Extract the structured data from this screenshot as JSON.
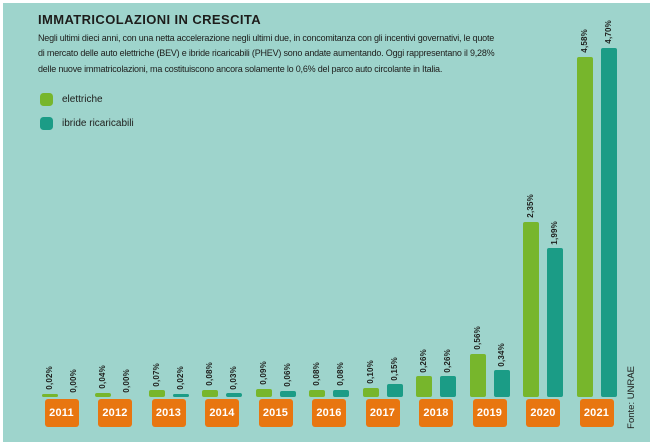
{
  "header": {
    "title": "IMMATRICOLAZIONI IN CRESCITA",
    "description_lines": [
      "Negli ultimi dieci anni, con una netta accelerazione negli ultimi due, in concomitanza con gli incentivi governativi, le quote",
      "di mercato delle auto elettriche (BEV) e ibride ricaricabili (PHEV) sono andate aumentando. Oggi rappresentano il 9,28%",
      "delle nuove immatricolazioni, ma costituiscono ancora solamente lo 0,6% del parco auto circolante in Italia."
    ]
  },
  "legend": [
    {
      "label": "elettriche",
      "color": "#77B62C",
      "icon": "green-square-swatch"
    },
    {
      "label": "ibride ricaricabili",
      "color": "#1B9C86",
      "icon": "teal-square-swatch"
    }
  ],
  "source": {
    "label": "Fonte: UNRAE"
  },
  "colors": {
    "background": "#9ED4CC",
    "frame": "#FFFFFF",
    "text": "#1D1D1B",
    "year_badge": "#E87610",
    "year_badge_text": "#FFFFFF",
    "electric_green": "#77B62C",
    "hybrid_teal": "#1B9C86"
  },
  "chart_data": {
    "type": "bar",
    "title": "IMMATRICOLAZIONI IN CRESCITA",
    "unit": "%",
    "categories": [
      "2011",
      "2012",
      "2013",
      "2014",
      "2015",
      "2016",
      "2017",
      "2018",
      "2019",
      "2020",
      "2021"
    ],
    "series": [
      {
        "name": "elettriche",
        "color": "#77B62C",
        "values": [
          0.02,
          0.04,
          0.07,
          0.08,
          0.09,
          0.08,
          0.1,
          0.26,
          0.56,
          2.35,
          4.58
        ],
        "labels": [
          "0,02%",
          "0,04%",
          "0,07%",
          "0,08%",
          "0,09%",
          "0,08%",
          "0,10%",
          "0,26%",
          "0,56%",
          "2,35%",
          "4,58%"
        ]
      },
      {
        "name": "ibride ricaricabili",
        "color": "#1B9C86",
        "values": [
          0.0,
          0.0,
          0.02,
          0.03,
          0.06,
          0.08,
          0.15,
          0.26,
          0.34,
          1.99,
          4.7
        ],
        "labels": [
          "0,00%",
          "0,00%",
          "0,02%",
          "0,03%",
          "0,06%",
          "0,08%",
          "0,15%",
          "0,26%",
          "0,34%",
          "1,99%",
          "4,70%"
        ]
      }
    ],
    "ylim": [
      0,
      5
    ],
    "grid": false,
    "axes_shown": false,
    "legend_position": "top-left",
    "value_labels": "rotated-90-above-bars",
    "source": "Fonte: UNRAE"
  }
}
